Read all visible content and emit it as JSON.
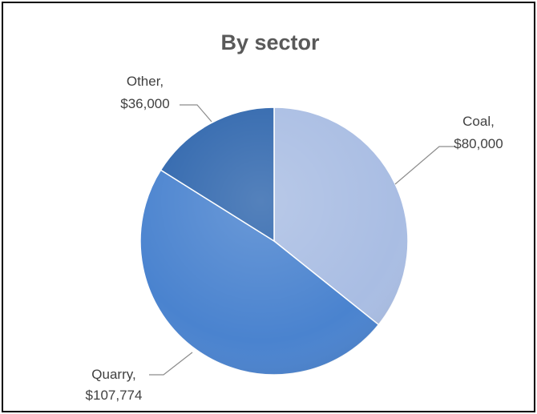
{
  "chart_data": {
    "type": "pie",
    "title": "By sector",
    "slices": [
      {
        "name": "Coal",
        "value": 80000,
        "label_name": "Coal,",
        "label_value": "$80,000",
        "color": "#a9bde3"
      },
      {
        "name": "Quarry",
        "value": 107774,
        "label_name": "Quarry,",
        "label_value": "$107,774",
        "color": "#4a83cf"
      },
      {
        "name": "Other",
        "value": 36000,
        "label_name": "Other,",
        "label_value": "$36,000",
        "color": "#2f66ad"
      }
    ],
    "start_angle_deg": 0,
    "direction": "clockwise",
    "legend": "none",
    "data_labels": "outside-with-leader-lines"
  }
}
